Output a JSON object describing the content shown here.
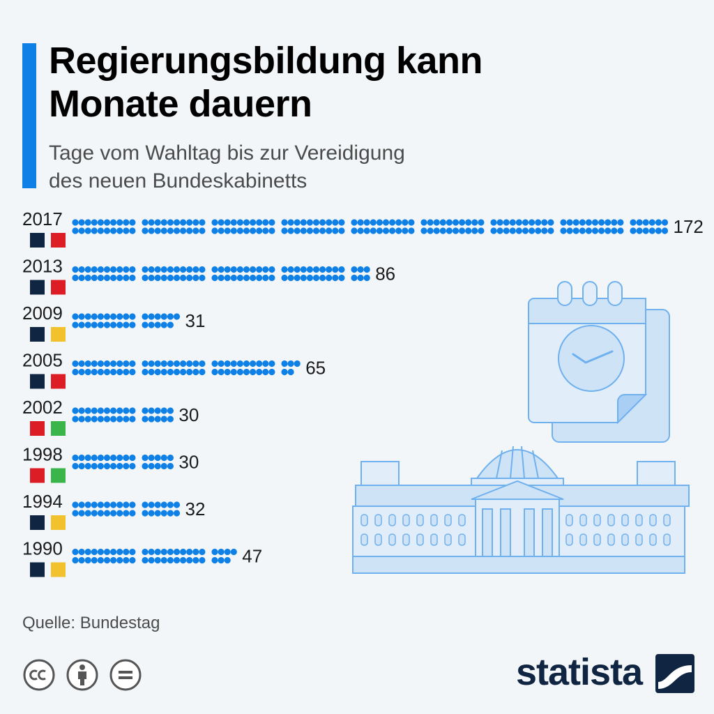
{
  "header": {
    "title_line1": "Regierungsbildung kann",
    "title_line2": "Monate dauern",
    "subtitle_line1": "Tage vom Wahltag bis zur Vereidigung",
    "subtitle_line2": "des neuen Bundeskabinetts"
  },
  "chart_data": {
    "type": "bar",
    "categories": [
      "2017",
      "2013",
      "2009",
      "2005",
      "2002",
      "1998",
      "1994",
      "1990"
    ],
    "values": [
      172,
      86,
      31,
      65,
      30,
      30,
      32,
      47
    ],
    "dot_color": "#0e80e6",
    "coalition_colors": [
      [
        "#0f2541",
        "#dc1d26"
      ],
      [
        "#0f2541",
        "#dc1d26"
      ],
      [
        "#0f2541",
        "#f2c12e"
      ],
      [
        "#0f2541",
        "#dc1d26"
      ],
      [
        "#dc1d26",
        "#3ab54a"
      ],
      [
        "#dc1d26",
        "#3ab54a"
      ],
      [
        "#0f2541",
        "#f2c12e"
      ],
      [
        "#0f2541",
        "#f2c12e"
      ]
    ]
  },
  "footer": {
    "source": "Quelle: Bundestag",
    "brand": "statista",
    "license_icons": [
      "cc-icon",
      "by-icon",
      "nd-icon"
    ]
  },
  "illustration": {
    "icons": [
      "calendar-clock-icon",
      "reichstag-building-icon"
    ],
    "fill_color": "#cfe3f7",
    "stroke_color": "#6fb0ee"
  }
}
